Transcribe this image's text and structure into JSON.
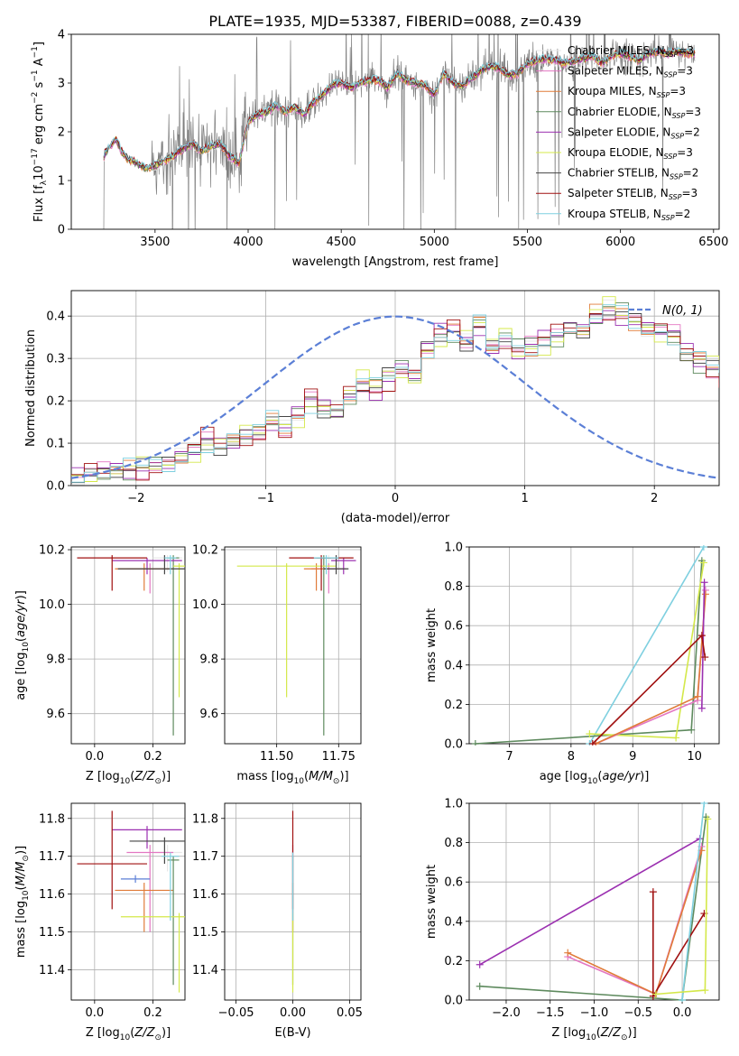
{
  "figure": {
    "title": "PLATE=1935, MJD=53387, FIBERID=0088, z=0.439"
  },
  "colors": {
    "data": "#808080",
    "gauss": "#5b7fd6",
    "chabrier_miles": "#e8e8e8",
    "salpeter_miles": "#e377c2",
    "kroupa_miles": "#e07b39",
    "chabrier_elodie": "#5e8a5e",
    "salpeter_elodie": "#9b30b0",
    "kroupa_elodie": "#d4e84a",
    "chabrier_stelib": "#444444",
    "salpeter_stelib": "#a01010",
    "kroupa_stelib": "#7fd0e0"
  },
  "chart_data": [
    {
      "id": "spectrum",
      "type": "line",
      "xlabel": "wavelength [Angstrom, rest frame]",
      "ylabel": "Flux [f_λ 10^-17 erg cm^-2 s^-1 A^-1]",
      "xlim": [
        3050,
        6530
      ],
      "ylim": [
        0,
        4
      ],
      "xticks": [
        "3500",
        "4000",
        "4500",
        "5000",
        "5500",
        "6000",
        "6500"
      ],
      "yticks": [
        "0",
        "1",
        "2",
        "3",
        "4"
      ],
      "grid": false,
      "legend_position": "top-right",
      "legend": [
        {
          "label": "Chabrier MILES, N",
          "sub": "SSP",
          "suffix": "=3",
          "color_key": "chabrier_miles"
        },
        {
          "label": "Salpeter MILES, N",
          "sub": "SSP",
          "suffix": "=3",
          "color_key": "salpeter_miles"
        },
        {
          "label": "Kroupa MILES, N",
          "sub": "SSP",
          "suffix": "=3",
          "color_key": "kroupa_miles"
        },
        {
          "label": "Chabrier ELODIE, N",
          "sub": "SSP",
          "suffix": "=3",
          "color_key": "chabrier_elodie"
        },
        {
          "label": "Salpeter ELODIE, N",
          "sub": "SSP",
          "suffix": "=2",
          "color_key": "salpeter_elodie"
        },
        {
          "label": "Kroupa ELODIE, N",
          "sub": "SSP",
          "suffix": "=3",
          "color_key": "kroupa_elodie"
        },
        {
          "label": "Chabrier STELIB, N",
          "sub": "SSP",
          "suffix": "=2",
          "color_key": "chabrier_stelib"
        },
        {
          "label": "Salpeter STELIB, N",
          "sub": "SSP",
          "suffix": "=3",
          "color_key": "salpeter_stelib"
        },
        {
          "label": "Kroupa STELIB, N",
          "sub": "SSP",
          "suffix": "=2",
          "color_key": "kroupa_stelib"
        }
      ],
      "model_continuum": {
        "x": [
          3200,
          3230,
          3260,
          3290,
          3320,
          3350,
          3400,
          3450,
          3500,
          3550,
          3600,
          3650,
          3700,
          3750,
          3800,
          3850,
          3900,
          3950,
          4000,
          4050,
          4100,
          4150,
          4200,
          4250,
          4300,
          4350,
          4400,
          4450,
          4500,
          4550,
          4600,
          4650,
          4700,
          4750,
          4800,
          4850,
          4900,
          4950,
          5000,
          5050,
          5100,
          5150,
          5200,
          5250,
          5300,
          5350,
          5400,
          5450,
          5500,
          5550,
          5600,
          5650,
          5700,
          5750,
          5800,
          5850,
          5900,
          5950,
          6000,
          6050,
          6100,
          6150,
          6200,
          6250,
          6300,
          6350,
          6400
        ],
        "y": [
          1.25,
          1.55,
          1.7,
          1.85,
          1.6,
          1.45,
          1.35,
          1.25,
          1.3,
          1.4,
          1.5,
          1.65,
          1.75,
          1.6,
          1.7,
          1.75,
          1.5,
          1.35,
          2.2,
          2.35,
          2.4,
          2.55,
          2.4,
          2.5,
          2.35,
          2.6,
          2.75,
          2.95,
          3.0,
          2.9,
          3.0,
          3.05,
          3.05,
          2.9,
          3.2,
          3.05,
          3.0,
          2.95,
          2.75,
          3.2,
          3.0,
          2.95,
          3.1,
          3.25,
          3.35,
          3.3,
          3.15,
          3.2,
          3.4,
          3.45,
          3.5,
          3.45,
          3.4,
          3.45,
          3.5,
          3.55,
          3.4,
          3.55,
          3.6,
          3.55,
          3.45,
          3.6,
          3.65,
          3.6,
          3.65,
          3.6,
          3.6
        ]
      },
      "data_range": [
        3220,
        6400
      ]
    },
    {
      "id": "residuals",
      "type": "histogram",
      "xlabel": "(data-model)/error",
      "ylabel": "Normed distribution",
      "xlim": [
        -2.5,
        2.5
      ],
      "ylim": [
        0,
        0.46
      ],
      "xticks": [
        "−2",
        "−1",
        "0",
        "1",
        "2"
      ],
      "yticks": [
        "0.0",
        "0.1",
        "0.2",
        "0.3",
        "0.4"
      ],
      "grid": true,
      "legend_position": "top-right",
      "gauss_label": "N(0, 1)",
      "bin_width": 0.1,
      "series_base": [
        0.02,
        0.025,
        0.03,
        0.035,
        0.035,
        0.045,
        0.05,
        0.055,
        0.07,
        0.08,
        0.1,
        0.09,
        0.1,
        0.12,
        0.13,
        0.155,
        0.14,
        0.165,
        0.2,
        0.18,
        0.17,
        0.21,
        0.24,
        0.23,
        0.26,
        0.28,
        0.26,
        0.32,
        0.35,
        0.36,
        0.34,
        0.38,
        0.33,
        0.35,
        0.32,
        0.33,
        0.34,
        0.35,
        0.37,
        0.36,
        0.4,
        0.42,
        0.41,
        0.39,
        0.37,
        0.36,
        0.35,
        0.31,
        0.29,
        0.28,
        0.25,
        0.23,
        0.22,
        0.2,
        0.18,
        0.15,
        0.14,
        0.12,
        0.11,
        0.1,
        0.09,
        0.085,
        0.08,
        0.07,
        0.06,
        0.06,
        0.05,
        0.05,
        0.045,
        0.045,
        0.04,
        0.04,
        0.035,
        0.03,
        0.03,
        0.025,
        0.025,
        0.02,
        0.02,
        0.015
      ],
      "series_offsets": {
        "chabrier_miles": 0.0,
        "salpeter_miles": 0.012,
        "kroupa_miles": -0.01,
        "chabrier_elodie": 0.008,
        "salpeter_elodie": -0.015,
        "kroupa_elodie": 0.015,
        "chabrier_stelib": -0.005,
        "salpeter_stelib": 0.02,
        "kroupa_stelib": -0.012
      }
    },
    {
      "id": "age_vs_z",
      "type": "scatter",
      "xlabel": "Z [log10(Z/Z☉)]",
      "ylabel": "age [log10(age/yr)]",
      "xlim": [
        -0.08,
        0.31
      ],
      "ylim": [
        9.49,
        10.21
      ],
      "xticks": [
        "0.0",
        "0.2"
      ],
      "yticks": [
        "9.6",
        "9.8",
        "10.0",
        "10.2"
      ],
      "grid": true,
      "points": [
        {
          "x": 0.25,
          "y": 10.17,
          "xerr": 0.05,
          "yerr_lo": 0.05,
          "yerr_hi": 0.01,
          "color_key": "chabrier_miles"
        },
        {
          "x": 0.19,
          "y": 10.13,
          "xerr": 0.08,
          "yerr_lo": 0.09,
          "yerr_hi": 0.02,
          "color_key": "salpeter_miles"
        },
        {
          "x": 0.17,
          "y": 10.13,
          "xerr": 0.1,
          "yerr_lo": 0.08,
          "yerr_hi": 0.02,
          "color_key": "kroupa_miles"
        },
        {
          "x": 0.27,
          "y": 10.17,
          "xerr": 0.02,
          "yerr_lo": 0.65,
          "yerr_hi": 0.01,
          "color_key": "chabrier_elodie"
        },
        {
          "x": 0.18,
          "y": 10.16,
          "xerr": 0.12,
          "yerr_lo": 0.05,
          "yerr_hi": 0.01,
          "color_key": "salpeter_elodie"
        },
        {
          "x": 0.29,
          "y": 10.14,
          "xerr": 0.02,
          "yerr_lo": 0.48,
          "yerr_hi": 0.01,
          "color_key": "kroupa_elodie"
        },
        {
          "x": 0.24,
          "y": 10.13,
          "xerr": 0.16,
          "yerr_lo": 0.02,
          "yerr_hi": 0.05,
          "color_key": "chabrier_stelib"
        },
        {
          "x": 0.06,
          "y": 10.17,
          "xerr": 0.12,
          "yerr_lo": 0.12,
          "yerr_hi": 0.01,
          "color_key": "salpeter_stelib"
        },
        {
          "x": 0.26,
          "y": 10.17,
          "xerr": 0.02,
          "yerr_lo": 0.06,
          "yerr_hi": 0.01,
          "color_key": "kroupa_stelib"
        }
      ]
    },
    {
      "id": "age_vs_mass",
      "type": "scatter",
      "xlabel": "mass [log10(M/M☉)]",
      "ylabel": "",
      "xlim": [
        11.29,
        11.84
      ],
      "ylim": [
        9.49,
        10.21
      ],
      "xticks": [
        "11.50",
        "11.75"
      ],
      "yticks": [
        "9.6",
        "9.8",
        "10.0",
        "10.2"
      ],
      "grid": true,
      "points": [
        {
          "x": 11.71,
          "y": 10.17,
          "xerr": 0.05,
          "yerr_lo": 0.05,
          "yerr_hi": 0.01,
          "color_key": "chabrier_miles"
        },
        {
          "x": 11.71,
          "y": 10.13,
          "xerr": 0.07,
          "yerr_lo": 0.09,
          "yerr_hi": 0.02,
          "color_key": "salpeter_miles"
        },
        {
          "x": 11.66,
          "y": 10.13,
          "xerr": 0.05,
          "yerr_lo": 0.08,
          "yerr_hi": 0.02,
          "color_key": "kroupa_miles"
        },
        {
          "x": 11.69,
          "y": 10.17,
          "xerr": 0.03,
          "yerr_lo": 0.65,
          "yerr_hi": 0.01,
          "color_key": "chabrier_elodie"
        },
        {
          "x": 11.77,
          "y": 10.16,
          "xerr": 0.05,
          "yerr_lo": 0.05,
          "yerr_hi": 0.01,
          "color_key": "salpeter_elodie"
        },
        {
          "x": 11.54,
          "y": 10.14,
          "xerr": 0.2,
          "yerr_lo": 0.48,
          "yerr_hi": 0.01,
          "color_key": "kroupa_elodie"
        },
        {
          "x": 11.74,
          "y": 10.13,
          "xerr": 0.05,
          "yerr_lo": 0.02,
          "yerr_hi": 0.05,
          "color_key": "chabrier_stelib"
        },
        {
          "x": 11.68,
          "y": 10.17,
          "xerr": 0.13,
          "yerr_lo": 0.12,
          "yerr_hi": 0.01,
          "color_key": "salpeter_stelib"
        },
        {
          "x": 11.7,
          "y": 10.17,
          "xerr": 0.05,
          "yerr_lo": 0.06,
          "yerr_hi": 0.01,
          "color_key": "kroupa_stelib"
        }
      ]
    },
    {
      "id": "weight_vs_age",
      "type": "line",
      "xlabel": "age [log10(age/yr)]",
      "ylabel": "mass weight",
      "xlim": [
        6.35,
        10.4
      ],
      "ylim": [
        0,
        1
      ],
      "xticks": [
        "7",
        "8",
        "9",
        "10"
      ],
      "yticks": [
        "0.0",
        "0.2",
        "0.4",
        "0.6",
        "0.8",
        "1.0"
      ],
      "grid": true,
      "series": [
        {
          "color_key": "kroupa_stelib",
          "x": [
            8.3,
            10.15
          ],
          "y": [
            0.0,
            1.0
          ]
        },
        {
          "color_key": "chabrier_elodie",
          "x": [
            6.45,
            9.95,
            10.12
          ],
          "y": [
            0.0,
            0.07,
            0.93
          ]
        },
        {
          "color_key": "kroupa_elodie",
          "x": [
            8.3,
            9.7,
            10.15
          ],
          "y": [
            0.05,
            0.03,
            0.92
          ]
        },
        {
          "color_key": "salpeter_miles",
          "x": [
            8.4,
            10.05,
            10.18
          ],
          "y": [
            0.0,
            0.22,
            0.78
          ]
        },
        {
          "color_key": "kroupa_miles",
          "x": [
            8.4,
            10.05,
            10.18
          ],
          "y": [
            0.0,
            0.24,
            0.76
          ]
        },
        {
          "color_key": "salpeter_elodie",
          "x": [
            10.12,
            10.16
          ],
          "y": [
            0.18,
            0.82
          ]
        },
        {
          "color_key": "salpeter_stelib",
          "x": [
            8.35,
            10.12,
            10.17
          ],
          "y": [
            0.0,
            0.55,
            0.44
          ]
        }
      ]
    },
    {
      "id": "mass_vs_z",
      "type": "scatter",
      "xlabel": "Z [log10(Z/Z☉)]",
      "ylabel": "mass [log10(M/M☉)]",
      "xlim": [
        -0.08,
        0.31
      ],
      "ylim": [
        11.32,
        11.84
      ],
      "xticks": [
        "0.0",
        "0.2"
      ],
      "yticks": [
        "11.4",
        "11.5",
        "11.6",
        "11.7",
        "11.8"
      ],
      "grid": true,
      "points": [
        {
          "x": 0.25,
          "y": 11.71,
          "xerr": 0.05,
          "yerr_lo": 0.05,
          "yerr_hi": 0.02,
          "color_key": "chabrier_miles"
        },
        {
          "x": 0.19,
          "y": 11.71,
          "xerr": 0.08,
          "yerr_lo": 0.21,
          "yerr_hi": 0.02,
          "color_key": "salpeter_miles"
        },
        {
          "x": 0.17,
          "y": 11.61,
          "xerr": 0.1,
          "yerr_lo": 0.11,
          "yerr_hi": 0.02,
          "color_key": "kroupa_miles"
        },
        {
          "x": 0.27,
          "y": 11.69,
          "xerr": 0.02,
          "yerr_lo": 0.33,
          "yerr_hi": 0.01,
          "color_key": "chabrier_elodie"
        },
        {
          "x": 0.18,
          "y": 11.77,
          "xerr": 0.12,
          "yerr_lo": 0.05,
          "yerr_hi": 0.01,
          "color_key": "salpeter_elodie"
        },
        {
          "x": 0.29,
          "y": 11.54,
          "xerr": 0.2,
          "yerr_lo": 0.2,
          "yerr_hi": 0.01,
          "color_key": "kroupa_elodie"
        },
        {
          "x": 0.24,
          "y": 11.74,
          "xerr": 0.12,
          "yerr_lo": 0.06,
          "yerr_hi": 0.01,
          "color_key": "chabrier_stelib"
        },
        {
          "x": 0.06,
          "y": 11.68,
          "xerr": 0.12,
          "yerr_lo": 0.12,
          "yerr_hi": 0.14,
          "color_key": "salpeter_stelib"
        },
        {
          "x": 0.26,
          "y": 11.7,
          "xerr": 0.03,
          "yerr_lo": 0.17,
          "yerr_hi": 0.01,
          "color_key": "kroupa_stelib"
        },
        {
          "x": 0.14,
          "y": 11.64,
          "xerr": 0.05,
          "yerr_lo": 0.01,
          "yerr_hi": 0.01,
          "color_key": "gauss"
        }
      ]
    },
    {
      "id": "mass_vs_ebv",
      "type": "scatter",
      "xlabel": "E(B-V)",
      "ylabel": "",
      "xlim": [
        -0.06,
        0.06
      ],
      "ylim": [
        11.32,
        11.84
      ],
      "xticks": [
        "−0.05",
        "0.00",
        "0.05"
      ],
      "yticks": [
        "11.4",
        "11.5",
        "11.6",
        "11.7",
        "11.8"
      ],
      "grid": true,
      "points": [
        {
          "x": 0.0,
          "y": 11.71,
          "xerr": 0.0,
          "yerr_lo": 0.05,
          "yerr_hi": 0.02,
          "color_key": "chabrier_miles"
        },
        {
          "x": 0.0,
          "y": 11.71,
          "xerr": 0.0,
          "yerr_lo": 0.21,
          "yerr_hi": 0.02,
          "color_key": "salpeter_miles"
        },
        {
          "x": 0.0,
          "y": 11.61,
          "xerr": 0.0,
          "yerr_lo": 0.11,
          "yerr_hi": 0.02,
          "color_key": "kroupa_miles"
        },
        {
          "x": 0.0,
          "y": 11.69,
          "xerr": 0.0,
          "yerr_lo": 0.33,
          "yerr_hi": 0.01,
          "color_key": "chabrier_elodie"
        },
        {
          "x": 0.0,
          "y": 11.54,
          "xerr": 0.0,
          "yerr_lo": 0.2,
          "yerr_hi": 0.01,
          "color_key": "kroupa_elodie"
        },
        {
          "x": 0.0,
          "y": 11.68,
          "xerr": 0.0,
          "yerr_lo": 0.12,
          "yerr_hi": 0.14,
          "color_key": "salpeter_stelib"
        },
        {
          "x": 0.0,
          "y": 11.7,
          "xerr": 0.0,
          "yerr_lo": 0.17,
          "yerr_hi": 0.01,
          "color_key": "kroupa_stelib"
        }
      ]
    },
    {
      "id": "weight_vs_z",
      "type": "line",
      "xlabel": "Z [log10(Z/Z☉)]",
      "ylabel": "mass weight",
      "xlim": [
        -2.42,
        0.42
      ],
      "ylim": [
        0,
        1
      ],
      "xticks": [
        "−2.0",
        "−1.5",
        "−1.0",
        "−0.5",
        "0.0"
      ],
      "yticks": [
        "0.0",
        "0.2",
        "0.4",
        "0.6",
        "0.8",
        "1.0"
      ],
      "grid": true,
      "series": [
        {
          "color_key": "salpeter_elodie",
          "x": [
            -2.3,
            0.2
          ],
          "y": [
            0.18,
            0.82
          ]
        },
        {
          "color_key": "chabrier_elodie",
          "x": [
            -2.3,
            0.0,
            0.27
          ],
          "y": [
            0.07,
            0.0,
            0.93
          ]
        },
        {
          "color_key": "salpeter_miles",
          "x": [
            -1.3,
            -0.3,
            0.22
          ],
          "y": [
            0.22,
            0.03,
            0.78
          ]
        },
        {
          "color_key": "kroupa_miles",
          "x": [
            -1.3,
            -0.3,
            0.22
          ],
          "y": [
            0.24,
            0.03,
            0.76
          ]
        },
        {
          "color_key": "salpeter_stelib",
          "x": [
            -0.33,
            -0.33,
            0.25
          ],
          "y": [
            0.55,
            0.02,
            0.44
          ]
        },
        {
          "color_key": "kroupa_stelib",
          "x": [
            0.0,
            0.25
          ],
          "y": [
            0.0,
            1.0
          ]
        },
        {
          "color_key": "kroupa_elodie",
          "x": [
            -0.3,
            0.26,
            0.29
          ],
          "y": [
            0.03,
            0.05,
            0.92
          ]
        }
      ]
    }
  ]
}
